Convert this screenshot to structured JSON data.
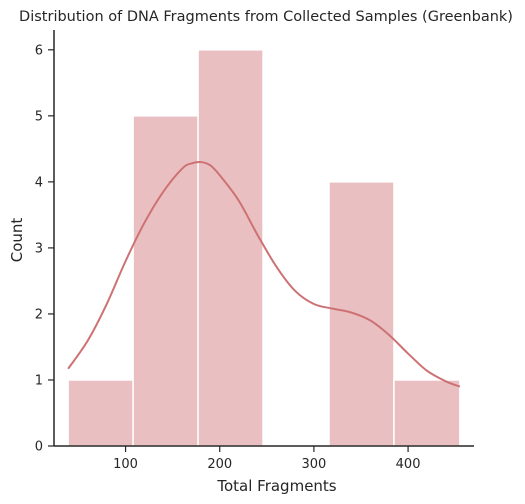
{
  "chart_data": {
    "type": "histogram",
    "title": "Distribution of DNA Fragments from Collected Samples (Greenbank)",
    "xlabel": "Total Fragments",
    "ylabel": "Count",
    "bins": [
      {
        "start": 39,
        "end": 108,
        "count": 1
      },
      {
        "start": 108,
        "end": 177,
        "count": 5
      },
      {
        "start": 177,
        "end": 246,
        "count": 6
      },
      {
        "start": 246,
        "end": 316,
        "count": 0
      },
      {
        "start": 316,
        "end": 385,
        "count": 4
      },
      {
        "start": 385,
        "end": 455,
        "count": 1
      }
    ],
    "kde": {
      "x": [
        39,
        60,
        80,
        100,
        120,
        140,
        160,
        170,
        180,
        190,
        200,
        220,
        240,
        260,
        280,
        300,
        320,
        340,
        360,
        380,
        400,
        420,
        440,
        455
      ],
      "y": [
        1.17,
        1.6,
        2.15,
        2.8,
        3.38,
        3.85,
        4.2,
        4.28,
        4.3,
        4.25,
        4.1,
        3.72,
        3.2,
        2.72,
        2.35,
        2.15,
        2.08,
        2.02,
        1.9,
        1.68,
        1.4,
        1.14,
        0.98,
        0.9
      ]
    },
    "xlim": [
      24,
      470
    ],
    "ylim": [
      0,
      6.3
    ],
    "xticks": [
      100,
      200,
      300,
      400
    ],
    "yticks": [
      0,
      1,
      2,
      3,
      4,
      5,
      6
    ],
    "bar_color": "#d98a8e",
    "line_color": "#cd7274",
    "grid": false
  }
}
